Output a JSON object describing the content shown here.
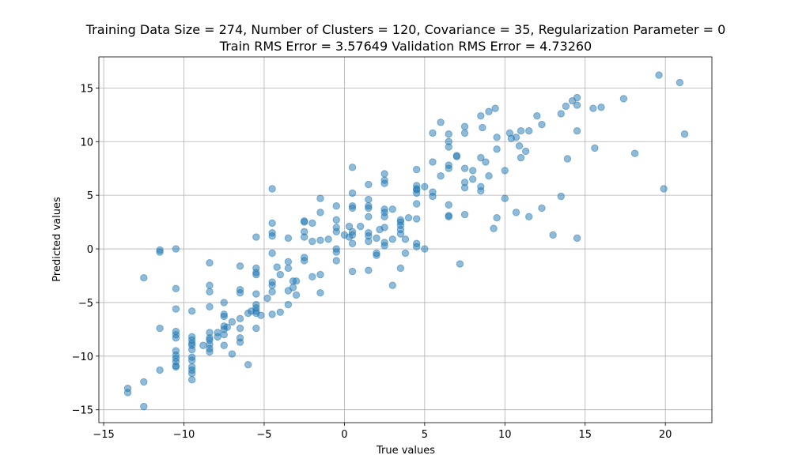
{
  "chart_data": {
    "type": "scatter",
    "title": "Training Data Size = 274, Number of Clusters = 120, Covariance = 35, Regularization Parameter = 0",
    "subtitle": "Train RMS Error = 3.57649 Validation RMS Error = 4.73260",
    "xlabel": "True values",
    "ylabel": "Predicted values",
    "xlim": [
      -15.3,
      22.9
    ],
    "ylim": [
      -16.2,
      17.9
    ],
    "xticks": [
      -15,
      -10,
      -5,
      0,
      5,
      10,
      15,
      20
    ],
    "yticks": [
      -15,
      -10,
      -5,
      0,
      5,
      10,
      15
    ],
    "xtick_labels": [
      "−15",
      "−10",
      "−5",
      "0",
      "5",
      "10",
      "15",
      "20"
    ],
    "ytick_labels": [
      "−15",
      "−10",
      "−5",
      "0",
      "5",
      "10",
      "15"
    ],
    "grid": true,
    "marker_color": "#1f77b4",
    "marker_alpha": 0.5,
    "points": [
      [
        -13.5,
        -13.0
      ],
      [
        -13.5,
        -13.4
      ],
      [
        -12.5,
        -12.4
      ],
      [
        -12.5,
        -14.7
      ],
      [
        -12.5,
        -2.7
      ],
      [
        -11.5,
        -0.1
      ],
      [
        -11.5,
        -0.3
      ],
      [
        -11.5,
        -7.4
      ],
      [
        -11.5,
        -11.3
      ],
      [
        -10.5,
        0.0
      ],
      [
        -10.5,
        -3.7
      ],
      [
        -10.5,
        -5.6
      ],
      [
        -10.5,
        -7.7
      ],
      [
        -10.5,
        -8.0
      ],
      [
        -10.5,
        -8.3
      ],
      [
        -10.5,
        -9.5
      ],
      [
        -10.5,
        -9.9
      ],
      [
        -10.5,
        -10.2
      ],
      [
        -10.5,
        -10.5
      ],
      [
        -10.5,
        -10.9
      ],
      [
        -10.5,
        -11.0
      ],
      [
        -9.5,
        -5.8
      ],
      [
        -9.5,
        -8.2
      ],
      [
        -9.5,
        -8.5
      ],
      [
        -9.5,
        -8.8
      ],
      [
        -9.5,
        -9.0
      ],
      [
        -9.5,
        -9.4
      ],
      [
        -9.5,
        -10.1
      ],
      [
        -9.5,
        -10.4
      ],
      [
        -9.5,
        -11.0
      ],
      [
        -9.5,
        -11.3
      ],
      [
        -9.5,
        -11.6
      ],
      [
        -9.5,
        -12.2
      ],
      [
        -8.8,
        -9.0
      ],
      [
        -8.4,
        -1.3
      ],
      [
        -8.4,
        -3.4
      ],
      [
        -8.4,
        -4.0
      ],
      [
        -8.4,
        -5.4
      ],
      [
        -8.4,
        -7.8
      ],
      [
        -8.4,
        -8.3
      ],
      [
        -8.4,
        -8.5
      ],
      [
        -8.4,
        -8.9
      ],
      [
        -8.4,
        -9.3
      ],
      [
        -8.4,
        -9.6
      ],
      [
        -7.9,
        -7.8
      ],
      [
        -7.9,
        -8.2
      ],
      [
        -7.5,
        -5.0
      ],
      [
        -7.5,
        -6.1
      ],
      [
        -7.5,
        -6.3
      ],
      [
        -7.5,
        -7.2
      ],
      [
        -7.5,
        -7.5
      ],
      [
        -7.5,
        -8.0
      ],
      [
        -7.5,
        -9.0
      ],
      [
        -7.3,
        -7.3
      ],
      [
        -7.0,
        -6.8
      ],
      [
        -7.0,
        -9.8
      ],
      [
        -6.5,
        -1.6
      ],
      [
        -6.5,
        -3.8
      ],
      [
        -6.5,
        -4.1
      ],
      [
        -6.5,
        -6.5
      ],
      [
        -6.5,
        -7.4
      ],
      [
        -6.5,
        -8.3
      ],
      [
        -6.5,
        -8.7
      ],
      [
        -6.0,
        -6.0
      ],
      [
        -6.0,
        -10.8
      ],
      [
        -5.8,
        -5.8
      ],
      [
        -5.5,
        1.1
      ],
      [
        -5.5,
        -1.8
      ],
      [
        -5.5,
        -2.2
      ],
      [
        -5.5,
        -2.4
      ],
      [
        -5.5,
        -4.2
      ],
      [
        -5.5,
        -5.2
      ],
      [
        -5.5,
        -5.5
      ],
      [
        -5.5,
        -5.8
      ],
      [
        -5.5,
        -6.0
      ],
      [
        -5.5,
        -7.4
      ],
      [
        -5.2,
        -6.2
      ],
      [
        -4.8,
        -4.6
      ],
      [
        -4.5,
        5.6
      ],
      [
        -4.5,
        2.4
      ],
      [
        -4.5,
        1.5
      ],
      [
        -4.5,
        1.2
      ],
      [
        -4.5,
        -0.4
      ],
      [
        -4.5,
        -3.1
      ],
      [
        -4.5,
        -3.4
      ],
      [
        -4.5,
        -4.0
      ],
      [
        -4.5,
        -6.1
      ],
      [
        -4.2,
        -1.7
      ],
      [
        -4.0,
        -2.4
      ],
      [
        -4.0,
        -5.9
      ],
      [
        -3.5,
        1.0
      ],
      [
        -3.5,
        -1.2
      ],
      [
        -3.5,
        -1.8
      ],
      [
        -3.5,
        -3.9
      ],
      [
        -3.5,
        -5.2
      ],
      [
        -3.2,
        -3.0
      ],
      [
        -3.2,
        -3.6
      ],
      [
        -3.0,
        -3.0
      ],
      [
        -3.0,
        -4.3
      ],
      [
        -2.5,
        2.6
      ],
      [
        -2.5,
        2.5
      ],
      [
        -2.5,
        1.6
      ],
      [
        -2.5,
        1.1
      ],
      [
        -2.5,
        -0.8
      ],
      [
        -2.5,
        -1.1
      ],
      [
        -2.0,
        2.4
      ],
      [
        -2.0,
        0.7
      ],
      [
        -2.0,
        -2.6
      ],
      [
        -1.5,
        4.7
      ],
      [
        -1.5,
        3.4
      ],
      [
        -1.5,
        0.8
      ],
      [
        -1.5,
        -2.4
      ],
      [
        -1.5,
        -4.1
      ],
      [
        -1.0,
        0.9
      ],
      [
        -0.5,
        4.0
      ],
      [
        -0.5,
        2.7
      ],
      [
        -0.5,
        2.0
      ],
      [
        -0.5,
        1.6
      ],
      [
        -0.5,
        0.0
      ],
      [
        -0.5,
        -0.3
      ],
      [
        -0.5,
        -1.1
      ],
      [
        0.0,
        1.3
      ],
      [
        0.3,
        2.1
      ],
      [
        0.3,
        1.1
      ],
      [
        0.5,
        7.6
      ],
      [
        0.5,
        5.2
      ],
      [
        0.5,
        4.0
      ],
      [
        0.5,
        3.8
      ],
      [
        0.5,
        1.6
      ],
      [
        0.5,
        1.3
      ],
      [
        0.5,
        0.5
      ],
      [
        0.5,
        -2.1
      ],
      [
        1.0,
        2.1
      ],
      [
        1.5,
        6.0
      ],
      [
        1.5,
        4.6
      ],
      [
        1.5,
        4.0
      ],
      [
        1.5,
        3.8
      ],
      [
        1.5,
        3.0
      ],
      [
        1.5,
        1.5
      ],
      [
        1.5,
        1.2
      ],
      [
        1.5,
        0.7
      ],
      [
        1.5,
        -2.0
      ],
      [
        2.0,
        1.0
      ],
      [
        2.0,
        -0.4
      ],
      [
        2.0,
        -0.6
      ],
      [
        2.2,
        1.8
      ],
      [
        2.5,
        7.0
      ],
      [
        2.5,
        6.4
      ],
      [
        2.5,
        6.1
      ],
      [
        2.5,
        3.7
      ],
      [
        2.5,
        3.4
      ],
      [
        2.5,
        3.0
      ],
      [
        2.5,
        2.0
      ],
      [
        2.5,
        0.6
      ],
      [
        2.5,
        0.3
      ],
      [
        3.0,
        3.7
      ],
      [
        3.0,
        0.9
      ],
      [
        3.0,
        -3.4
      ],
      [
        3.5,
        2.7
      ],
      [
        3.5,
        2.5
      ],
      [
        3.5,
        2.2
      ],
      [
        3.5,
        1.8
      ],
      [
        3.5,
        1.4
      ],
      [
        3.5,
        -1.8
      ],
      [
        3.8,
        0.9
      ],
      [
        3.8,
        -0.4
      ],
      [
        4.0,
        2.9
      ],
      [
        4.5,
        7.4
      ],
      [
        4.5,
        5.9
      ],
      [
        4.5,
        5.6
      ],
      [
        4.5,
        5.5
      ],
      [
        4.5,
        5.2
      ],
      [
        4.5,
        4.2
      ],
      [
        4.5,
        2.8
      ],
      [
        4.5,
        0.5
      ],
      [
        4.5,
        0.2
      ],
      [
        5.0,
        5.8
      ],
      [
        5.0,
        0.0
      ],
      [
        5.5,
        10.8
      ],
      [
        5.5,
        8.1
      ],
      [
        5.5,
        5.3
      ],
      [
        5.5,
        4.9
      ],
      [
        6.0,
        11.8
      ],
      [
        6.0,
        6.8
      ],
      [
        6.5,
        10.7
      ],
      [
        6.5,
        10.0
      ],
      [
        6.5,
        9.5
      ],
      [
        6.5,
        7.8
      ],
      [
        6.5,
        7.5
      ],
      [
        6.5,
        4.1
      ],
      [
        6.5,
        3.1
      ],
      [
        6.5,
        3.0
      ],
      [
        7.0,
        8.7
      ],
      [
        7.0,
        8.6
      ],
      [
        7.2,
        -1.4
      ],
      [
        7.5,
        11.4
      ],
      [
        7.5,
        10.8
      ],
      [
        7.5,
        7.5
      ],
      [
        7.5,
        6.2
      ],
      [
        7.5,
        5.7
      ],
      [
        7.5,
        3.2
      ],
      [
        8.0,
        7.3
      ],
      [
        8.0,
        6.5
      ],
      [
        8.5,
        12.4
      ],
      [
        8.5,
        8.5
      ],
      [
        8.5,
        5.8
      ],
      [
        8.5,
        5.4
      ],
      [
        8.6,
        11.3
      ],
      [
        8.8,
        8.1
      ],
      [
        9.0,
        12.8
      ],
      [
        9.0,
        6.8
      ],
      [
        9.4,
        13.1
      ],
      [
        9.3,
        1.9
      ],
      [
        9.5,
        10.4
      ],
      [
        9.5,
        9.3
      ],
      [
        9.5,
        2.9
      ],
      [
        10.0,
        7.3
      ],
      [
        10.0,
        4.7
      ],
      [
        10.3,
        10.8
      ],
      [
        10.4,
        10.3
      ],
      [
        10.7,
        10.4
      ],
      [
        10.7,
        3.4
      ],
      [
        10.9,
        9.6
      ],
      [
        11.0,
        8.5
      ],
      [
        11.0,
        11.0
      ],
      [
        11.3,
        9.1
      ],
      [
        11.5,
        11.0
      ],
      [
        11.5,
        3.0
      ],
      [
        12.0,
        12.4
      ],
      [
        12.3,
        11.6
      ],
      [
        12.3,
        3.8
      ],
      [
        13.0,
        1.3
      ],
      [
        13.5,
        12.6
      ],
      [
        13.5,
        4.9
      ],
      [
        13.8,
        13.3
      ],
      [
        13.9,
        8.4
      ],
      [
        14.2,
        13.8
      ],
      [
        14.5,
        14.1
      ],
      [
        14.5,
        13.4
      ],
      [
        14.5,
        11.0
      ],
      [
        14.5,
        1.0
      ],
      [
        15.5,
        13.1
      ],
      [
        15.6,
        9.4
      ],
      [
        16.0,
        13.2
      ],
      [
        17.4,
        14.0
      ],
      [
        18.1,
        8.9
      ],
      [
        19.6,
        16.2
      ],
      [
        19.9,
        5.6
      ],
      [
        20.9,
        15.5
      ],
      [
        21.2,
        10.7
      ]
    ]
  }
}
